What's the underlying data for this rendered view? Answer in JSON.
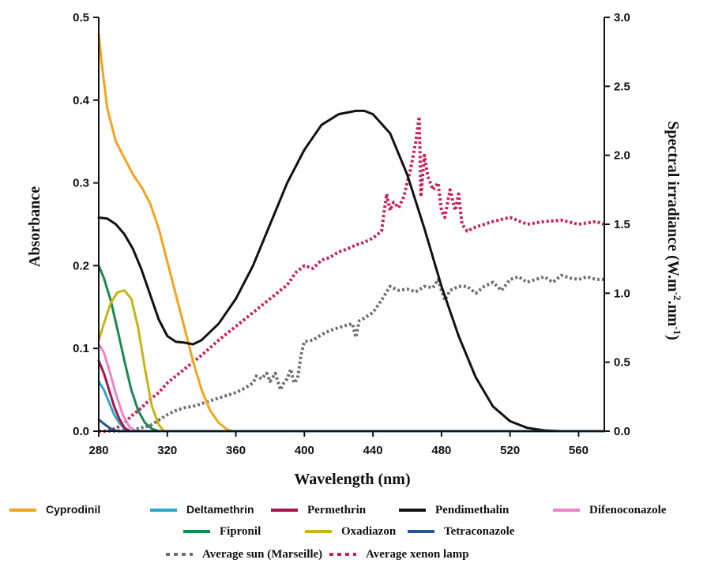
{
  "chart_data": {
    "type": "line",
    "xlabel": "Wavelength (nm)",
    "ylabel_left": "Absorbance",
    "ylabel_right_parts": [
      "Spectral irradiance (W.m",
      "-2",
      ".nm",
      "-1",
      ")"
    ],
    "x_ticks": [
      280,
      320,
      360,
      400,
      440,
      480,
      520,
      560
    ],
    "x_tick_labels": [
      "280",
      "320",
      "360",
      "400",
      "440",
      "480",
      "520",
      "560"
    ],
    "xlim": [
      280,
      575
    ],
    "y_left_ticks": [
      0.0,
      0.1,
      0.2,
      0.3,
      0.4,
      0.5
    ],
    "y_left_tick_labels": [
      "0.0",
      "0.1",
      "0.2",
      "0.3",
      "0.4",
      "0.5"
    ],
    "ylim_left": [
      0,
      0.5
    ],
    "y_right_ticks": [
      0.0,
      0.5,
      1.0,
      1.5,
      2.0,
      2.5,
      3.0
    ],
    "y_right_tick_labels": [
      "0.0",
      "0.5",
      "1.0",
      "1.5",
      "2.0",
      "2.5",
      "3.0"
    ],
    "ylim_right": [
      0,
      3.0
    ],
    "series": [
      {
        "name": "Cyprodinil",
        "color": "#f7a21b",
        "dash": "solid",
        "axis": "left",
        "x": [
          280,
          282,
          285,
          290,
          295,
          300,
          305,
          310,
          315,
          320,
          325,
          330,
          335,
          340,
          345,
          350,
          355,
          358,
          575
        ],
        "y": [
          0.48,
          0.44,
          0.39,
          0.35,
          0.33,
          0.31,
          0.295,
          0.275,
          0.245,
          0.205,
          0.165,
          0.125,
          0.085,
          0.05,
          0.025,
          0.01,
          0.002,
          0.0,
          0.0
        ]
      },
      {
        "name": "Deltamethrin",
        "color": "#2aa7c9",
        "dash": "solid",
        "axis": "left",
        "x": [
          280,
          283,
          286,
          289,
          292,
          295,
          298,
          575
        ],
        "y": [
          0.06,
          0.05,
          0.035,
          0.02,
          0.01,
          0.003,
          0.0,
          0.0
        ]
      },
      {
        "name": "Permethrin",
        "color": "#a5134a",
        "dash": "solid",
        "axis": "left",
        "x": [
          280,
          283,
          286,
          289,
          292,
          295,
          298,
          575
        ],
        "y": [
          0.085,
          0.07,
          0.05,
          0.03,
          0.015,
          0.004,
          0.0,
          0.0
        ]
      },
      {
        "name": "Pendimethalin",
        "color": "#111111",
        "dash": "solid",
        "axis": "left",
        "x": [
          280,
          285,
          290,
          295,
          300,
          305,
          310,
          315,
          320,
          325,
          330,
          335,
          340,
          350,
          360,
          370,
          380,
          390,
          400,
          410,
          420,
          430,
          435,
          440,
          450,
          460,
          470,
          480,
          490,
          500,
          510,
          520,
          530,
          540,
          550,
          560,
          575
        ],
        "y": [
          0.258,
          0.257,
          0.25,
          0.238,
          0.22,
          0.195,
          0.165,
          0.135,
          0.115,
          0.108,
          0.107,
          0.105,
          0.11,
          0.13,
          0.16,
          0.2,
          0.25,
          0.3,
          0.34,
          0.37,
          0.383,
          0.387,
          0.387,
          0.383,
          0.36,
          0.31,
          0.245,
          0.175,
          0.115,
          0.065,
          0.03,
          0.012,
          0.004,
          0.001,
          0.0,
          0.0,
          0.0
        ]
      },
      {
        "name": "Difenoconazole",
        "color": "#ee82c8",
        "dash": "solid",
        "axis": "left",
        "x": [
          280,
          283,
          286,
          290,
          294,
          298,
          302,
          575
        ],
        "y": [
          0.105,
          0.095,
          0.075,
          0.045,
          0.02,
          0.005,
          0.0,
          0.0
        ]
      },
      {
        "name": "Fipronil",
        "color": "#178a4e",
        "dash": "solid",
        "axis": "left",
        "x": [
          280,
          283,
          287,
          291,
          295,
          299,
          303,
          307,
          311,
          315,
          575
        ],
        "y": [
          0.2,
          0.185,
          0.158,
          0.122,
          0.085,
          0.05,
          0.025,
          0.01,
          0.003,
          0.0,
          0.0
        ]
      },
      {
        "name": "Oxadiazon",
        "color": "#c8b412",
        "dash": "solid",
        "axis": "left",
        "x": [
          280,
          283,
          287,
          291,
          295,
          299,
          303,
          307,
          311,
          315,
          318,
          575
        ],
        "y": [
          0.11,
          0.13,
          0.155,
          0.168,
          0.17,
          0.16,
          0.125,
          0.075,
          0.03,
          0.008,
          0.0,
          0.0
        ]
      },
      {
        "name": "Tetraconazole",
        "color": "#1f5a8f",
        "dash": "solid",
        "axis": "left",
        "x": [
          280,
          283,
          287,
          291,
          575
        ],
        "y": [
          0.014,
          0.009,
          0.003,
          0.0,
          0.0
        ]
      },
      {
        "name": "Average sun (Marseille)",
        "color": "#707070",
        "dash": "dotted",
        "axis": "right",
        "x": [
          280,
          290,
          300,
          310,
          315,
          320,
          325,
          330,
          335,
          340,
          345,
          350,
          355,
          360,
          365,
          370,
          372,
          375,
          378,
          380,
          383,
          386,
          388,
          390,
          392,
          394,
          396,
          398,
          400,
          405,
          410,
          415,
          420,
          425,
          428,
          430,
          432,
          435,
          440,
          445,
          450,
          455,
          460,
          465,
          470,
          475,
          478,
          480,
          482,
          485,
          490,
          495,
          500,
          505,
          510,
          515,
          520,
          525,
          530,
          535,
          540,
          545,
          550,
          555,
          560,
          565,
          570,
          575
        ],
        "y": [
          0.0,
          0.0,
          0.01,
          0.04,
          0.08,
          0.12,
          0.15,
          0.17,
          0.18,
          0.2,
          0.22,
          0.24,
          0.26,
          0.28,
          0.31,
          0.35,
          0.4,
          0.38,
          0.42,
          0.36,
          0.42,
          0.3,
          0.35,
          0.38,
          0.45,
          0.35,
          0.38,
          0.55,
          0.65,
          0.66,
          0.7,
          0.73,
          0.75,
          0.77,
          0.78,
          0.68,
          0.8,
          0.82,
          0.86,
          0.95,
          1.05,
          1.02,
          1.03,
          1.01,
          1.05,
          1.04,
          1.1,
          1.02,
          0.95,
          1.02,
          1.05,
          1.05,
          1.0,
          1.05,
          1.08,
          1.02,
          1.1,
          1.12,
          1.08,
          1.1,
          1.12,
          1.08,
          1.13,
          1.11,
          1.1,
          1.12,
          1.1,
          1.1
        ]
      },
      {
        "name": "Average xenon lamp",
        "color": "#cc1f5c",
        "dash": "dotted",
        "axis": "right",
        "x": [
          280,
          285,
          290,
          295,
          300,
          305,
          310,
          315,
          320,
          330,
          340,
          350,
          360,
          370,
          380,
          390,
          395,
          400,
          405,
          410,
          415,
          420,
          425,
          430,
          435,
          440,
          445,
          448,
          450,
          452,
          455,
          458,
          460,
          462,
          465,
          467,
          468,
          470,
          472,
          475,
          478,
          480,
          482,
          485,
          488,
          490,
          492,
          495,
          500,
          510,
          520,
          530,
          540,
          550,
          560,
          570,
          575
        ],
        "y": [
          0.0,
          0.0,
          0.02,
          0.06,
          0.12,
          0.17,
          0.23,
          0.28,
          0.35,
          0.45,
          0.55,
          0.66,
          0.76,
          0.86,
          0.96,
          1.06,
          1.15,
          1.2,
          1.18,
          1.24,
          1.26,
          1.3,
          1.32,
          1.35,
          1.37,
          1.4,
          1.45,
          1.72,
          1.6,
          1.66,
          1.62,
          1.7,
          1.8,
          1.9,
          2.1,
          2.28,
          1.7,
          2.0,
          1.85,
          1.75,
          1.8,
          1.6,
          1.55,
          1.75,
          1.6,
          1.72,
          1.5,
          1.45,
          1.48,
          1.52,
          1.55,
          1.5,
          1.52,
          1.53,
          1.5,
          1.52,
          1.5
        ]
      }
    ],
    "legend_rows": [
      [
        "Cyprodinil",
        "Deltamethrin",
        "Permethrin",
        "Pendimethalin",
        "Difenoconazole"
      ],
      [
        "Fipronil",
        "Oxadiazon",
        "Tetraconazole"
      ],
      [
        "Average sun (Marseille)",
        "Average xenon lamp"
      ]
    ]
  }
}
